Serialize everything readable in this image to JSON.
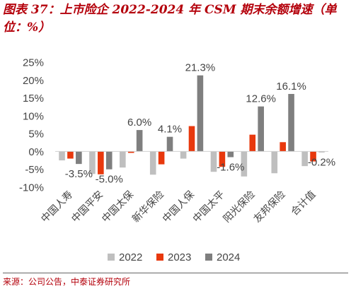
{
  "title": "图表 37：上市险企 2022-2024 年 CSM 期末余额增速（单位：%）",
  "source": "来源：公司公告，中泰证券研究所",
  "colors": {
    "title": "#b4000b",
    "axis_text": "#444444"
  },
  "chart_data": {
    "type": "bar",
    "title": "图表 37：上市险企 2022-2024 年 CSM 期末余额增速（单位：%）",
    "xlabel": "",
    "ylabel": "",
    "unit": "%",
    "ylim": [
      -10,
      25
    ],
    "yticks": [
      "25%",
      "20%",
      "15%",
      "10%",
      "5%",
      "0%",
      "-5%",
      "-10%"
    ],
    "ytick_values": [
      25,
      20,
      15,
      10,
      5,
      0,
      -5,
      -10
    ],
    "grid": false,
    "legend": "bottom",
    "categories": [
      "中国人寿",
      "中国平安",
      "中国太保",
      "新华保险",
      "中国人保",
      "中国太平",
      "阳光保险",
      "友邦保险",
      "合计值"
    ],
    "series": [
      {
        "name": "2022",
        "color": "#bfbfbf",
        "values": [
          -2.5,
          -6.3,
          -4.5,
          -6.5,
          -2.0,
          -5.7,
          -7.0,
          -6.1,
          -4.1
        ]
      },
      {
        "name": "2023",
        "color": "#e8380d",
        "values": [
          -2.0,
          -6.4,
          -0.4,
          -3.6,
          7.1,
          -4.3,
          4.7,
          2.6,
          -2.8
        ]
      },
      {
        "name": "2024",
        "color": "#7f7f7f",
        "values": [
          -3.5,
          -5.0,
          6.0,
          4.1,
          21.3,
          -1.6,
          12.6,
          16.1,
          -0.2
        ]
      }
    ],
    "data_labels": [
      {
        "category": "中国人寿",
        "series": "2024",
        "text": "-3.5%"
      },
      {
        "category": "中国平安",
        "series": "2024",
        "text": "-5.0%"
      },
      {
        "category": "中国太保",
        "series": "2024",
        "text": "6.0%"
      },
      {
        "category": "新华保险",
        "series": "2024",
        "text": "4.1%"
      },
      {
        "category": "中国人保",
        "series": "2024",
        "text": "21.3%"
      },
      {
        "category": "中国太平",
        "series": "2024",
        "text": "-1.6%"
      },
      {
        "category": "阳光保险",
        "series": "2024",
        "text": "12.6%"
      },
      {
        "category": "友邦保险",
        "series": "2024",
        "text": "16.1%"
      },
      {
        "category": "合计值",
        "series": "2024",
        "text": "-0.2%"
      }
    ]
  }
}
